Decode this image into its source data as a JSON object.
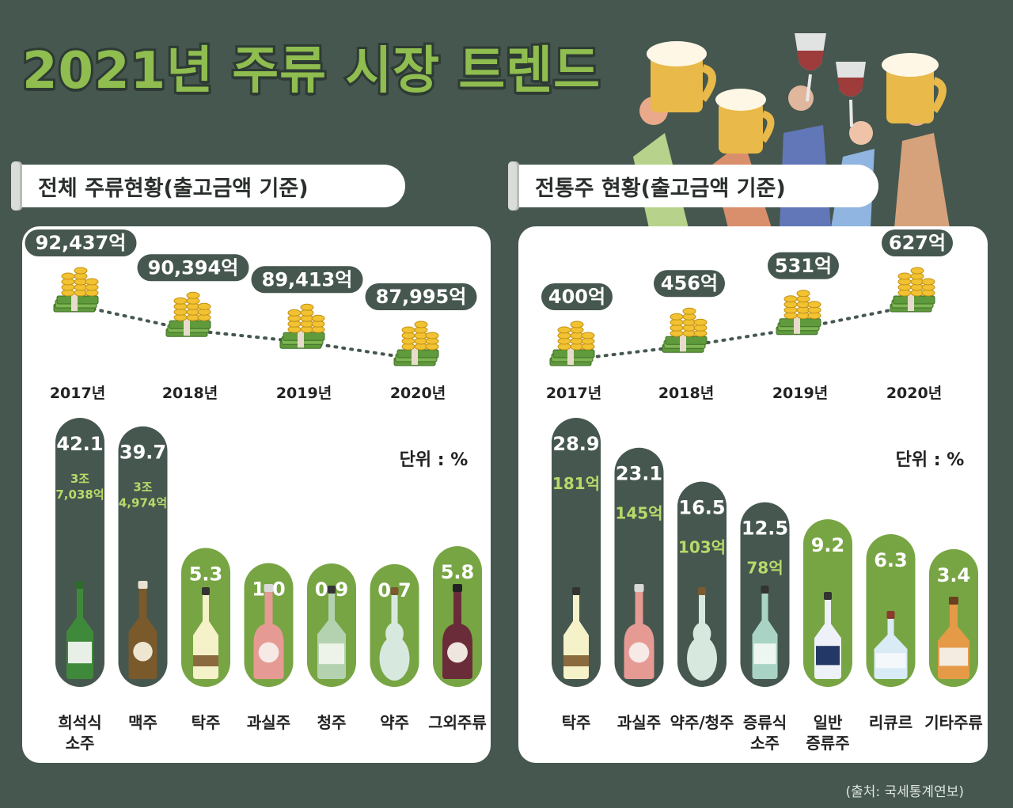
{
  "title": "2021년 주류 시장 트렌드",
  "source": "(출처: 국세통계연보)",
  "colors": {
    "background": "#45574f",
    "dark_bar": "#45574f",
    "green_bar": "#78a543",
    "accent_text": "#b8d96a",
    "white": "#ffffff"
  },
  "chart_data": [
    {
      "type": "line",
      "section": "전체 주류현황(출고금액 기준)",
      "x": [
        "2017년",
        "2018년",
        "2019년",
        "2020년"
      ],
      "values": [
        92437,
        90394,
        89413,
        87995
      ],
      "labels": [
        "92,437억",
        "90,394억",
        "89,413억",
        "87,995억"
      ],
      "marker": "money-stack-icon"
    },
    {
      "type": "bar",
      "section": "전체 주류현황(출고금액 기준)",
      "unit_label": "단위 : %",
      "categories": [
        "희석식 소주",
        "맥주",
        "탁주",
        "과실주",
        "청주",
        "약주",
        "그외주류"
      ],
      "values": [
        42.1,
        39.7,
        5.3,
        1.0,
        0.9,
        0.7,
        5.8
      ],
      "value_labels": [
        "42.1",
        "39.7",
        "5.3",
        "1.0",
        "0.9",
        "0.7",
        "5.8"
      ],
      "sub_labels": [
        "3조 7,038억",
        "3조 4,974억",
        "",
        "",
        "",
        "",
        ""
      ],
      "bar_color": [
        "dark",
        "dark",
        "green",
        "green",
        "green",
        "green",
        "green"
      ],
      "bottle_icons": [
        "soju-bottle-icon",
        "beer-bottle-icon",
        "makgeolli-bottle-icon",
        "fruit-wine-bottle-icon",
        "cheongju-bottle-icon",
        "yakju-bottle-icon",
        "liquor-bottle-icon"
      ]
    },
    {
      "type": "line",
      "section": "전통주 현황(출고금액 기준)",
      "x": [
        "2017년",
        "2018년",
        "2019년",
        "2020년"
      ],
      "values": [
        400,
        456,
        531,
        627
      ],
      "labels": [
        "400억",
        "456억",
        "531억",
        "627억"
      ],
      "marker": "money-stack-icon"
    },
    {
      "type": "bar",
      "section": "전통주 현황(출고금액 기준)",
      "unit_label": "단위 : %",
      "categories": [
        "탁주",
        "과실주",
        "약주/청주",
        "증류식 소주",
        "일반 증류주",
        "리큐르",
        "기타주류"
      ],
      "values": [
        28.9,
        23.1,
        16.5,
        12.5,
        9.2,
        6.3,
        3.4
      ],
      "value_labels": [
        "28.9",
        "23.1",
        "16.5",
        "12.5",
        "9.2",
        "6.3",
        "3.4"
      ],
      "sub_labels": [
        "181억",
        "145억",
        "103억",
        "78억",
        "",
        "",
        ""
      ],
      "bar_color": [
        "dark",
        "dark",
        "dark",
        "dark",
        "green",
        "green",
        "green"
      ],
      "bottle_icons": [
        "makgeolli-bottle-icon",
        "fruit-wine-bottle-icon",
        "yakju-bottle-icon",
        "distilled-soju-bottle-icon",
        "spirit-bottle-icon",
        "liqueur-bottle-icon",
        "whisky-bottle-icon"
      ]
    }
  ]
}
